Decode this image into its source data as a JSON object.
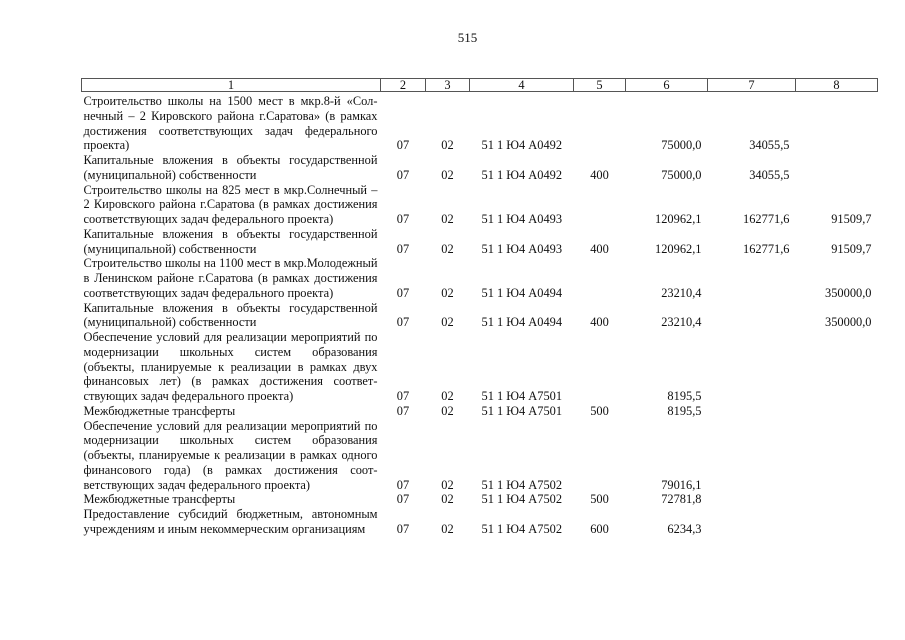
{
  "page_number": "515",
  "table": {
    "headers": [
      "1",
      "2",
      "3",
      "4",
      "5",
      "6",
      "7",
      "8"
    ],
    "rows": [
      {
        "name": "Строительство школы на 1500 мест в мкр.8-й «Сол­нечный – 2 Кировского района г.Саратова» (в рам­ках достижения соответствующих задач федераль­ного проекта)",
        "rz": "07",
        "pr": "02",
        "csr": "51 1 Ю4 А0492",
        "vr": "",
        "v6": "75000,0",
        "v7": "34055,5",
        "v8": ""
      },
      {
        "name": "Капитальные вложения в объекты государственной (муниципальной) собственности",
        "rz": "07",
        "pr": "02",
        "csr": "51 1 Ю4 А0492",
        "vr": "400",
        "v6": "75000,0",
        "v7": "34055,5",
        "v8": ""
      },
      {
        "name": "Строительство школы на 825 мест в мкр.Солнеч­ный – 2 Кировского района г.Саратова (в рамках до­стижения соответствующих задач федерального проекта)",
        "rz": "07",
        "pr": "02",
        "csr": "51 1 Ю4 А0493",
        "vr": "",
        "v6": "120962,1",
        "v7": "162771,6",
        "v8": "91509,7"
      },
      {
        "name": "Капитальные вложения в объекты государственной (муниципальной) собственности",
        "rz": "07",
        "pr": "02",
        "csr": "51 1 Ю4 А0493",
        "vr": "400",
        "v6": "120962,1",
        "v7": "162771,6",
        "v8": "91509,7"
      },
      {
        "name": "Строительство школы на 1100 мест в мкр.Молодежный в Ленинском районе г.Саратова (в рамках достижения соответствующих задач феде­рального проекта)",
        "rz": "07",
        "pr": "02",
        "csr": "51 1 Ю4 А0494",
        "vr": "",
        "v6": "23210,4",
        "v7": "",
        "v8": "350000,0"
      },
      {
        "name": "Капитальные вложения в объекты государственной (муниципальной) собственности",
        "rz": "07",
        "pr": "02",
        "csr": "51 1 Ю4 А0494",
        "vr": "400",
        "v6": "23210,4",
        "v7": "",
        "v8": "350000,0"
      },
      {
        "name": "Обеспечение условий для реализации мероприятий по модернизации школьных систем образования (объекты, планируемые к реализации в рамках двух финансовых лет) (в рамках достижения соответ­ствующих задач федерального проекта)",
        "rz": "07",
        "pr": "02",
        "csr": "51 1 Ю4 А7501",
        "vr": "",
        "v6": "8195,5",
        "v7": "",
        "v8": ""
      },
      {
        "name": "Межбюджетные трансферты",
        "rz": "07",
        "pr": "02",
        "csr": "51 1 Ю4 А7501",
        "vr": "500",
        "v6": "8195,5",
        "v7": "",
        "v8": ""
      },
      {
        "name": "Обеспечение условий для реализации мероприятий по модернизации школьных систем образования (объекты, планируемые к реализации в рамках од­ного финансового года) (в рамках достижения соот­ветствующих задач федерального проекта)",
        "rz": "07",
        "pr": "02",
        "csr": "51 1 Ю4 А7502",
        "vr": "",
        "v6": "79016,1",
        "v7": "",
        "v8": ""
      },
      {
        "name": "Межбюджетные трансферты",
        "rz": "07",
        "pr": "02",
        "csr": "51 1 Ю4 А7502",
        "vr": "500",
        "v6": "72781,8",
        "v7": "",
        "v8": ""
      },
      {
        "name": "Предоставление субсидий бюджетным, автономным учреждениям и иным некоммерческим организациям",
        "rz": "07",
        "pr": "02",
        "csr": "51 1 Ю4 А7502",
        "vr": "600",
        "v6": "6234,3",
        "v7": "",
        "v8": ""
      }
    ]
  }
}
